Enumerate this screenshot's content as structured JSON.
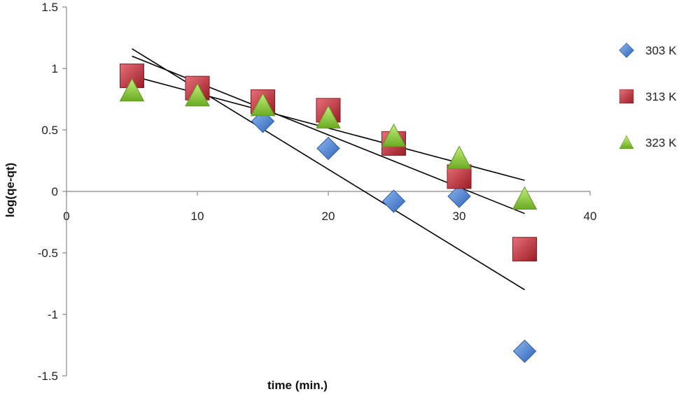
{
  "chart_data": {
    "type": "scatter",
    "xlabel": "time (min.)",
    "ylabel": "log(qe-qt)",
    "xlim": [
      0,
      40
    ],
    "ylim": [
      -1.5,
      1.5
    ],
    "xticks": [
      0,
      10,
      20,
      30,
      40
    ],
    "yticks": [
      1.5,
      1,
      0.5,
      0,
      -0.5,
      -1,
      -1.5
    ],
    "xtick_labels": [
      "0",
      "10",
      "20",
      "30",
      "40"
    ],
    "ytick_labels": [
      "1.5",
      "1",
      "0.5",
      "0",
      "-0.5",
      "-1",
      "-1.5"
    ],
    "grid": false,
    "legend_position": "right",
    "series": [
      {
        "name": "303 K",
        "marker": "diamond",
        "color": "#4a7fd0",
        "points": [
          [
            5,
            0.9
          ],
          [
            10,
            0.82
          ],
          [
            15,
            0.57
          ],
          [
            20,
            0.35
          ],
          [
            25,
            -0.08
          ],
          [
            30,
            -0.04
          ],
          [
            35,
            -1.3
          ]
        ],
        "trendline": [
          [
            5,
            1.16
          ],
          [
            35,
            -0.8
          ]
        ]
      },
      {
        "name": "313 K",
        "marker": "square",
        "color": "#c8303a",
        "points": [
          [
            5,
            0.94
          ],
          [
            10,
            0.84
          ],
          [
            15,
            0.73
          ],
          [
            20,
            0.66
          ],
          [
            25,
            0.39
          ],
          [
            30,
            0.12
          ],
          [
            35,
            -0.47
          ]
        ],
        "trendline": [
          [
            5,
            1.1
          ],
          [
            35,
            -0.18
          ]
        ]
      },
      {
        "name": "323 K",
        "marker": "triangle",
        "color": "#8fcf3a",
        "points": [
          [
            5,
            0.82
          ],
          [
            10,
            0.78
          ],
          [
            15,
            0.7
          ],
          [
            20,
            0.6
          ],
          [
            25,
            0.45
          ],
          [
            30,
            0.27
          ],
          [
            35,
            -0.06
          ]
        ],
        "trendline": [
          [
            5,
            0.94
          ],
          [
            35,
            0.09
          ]
        ]
      }
    ]
  }
}
